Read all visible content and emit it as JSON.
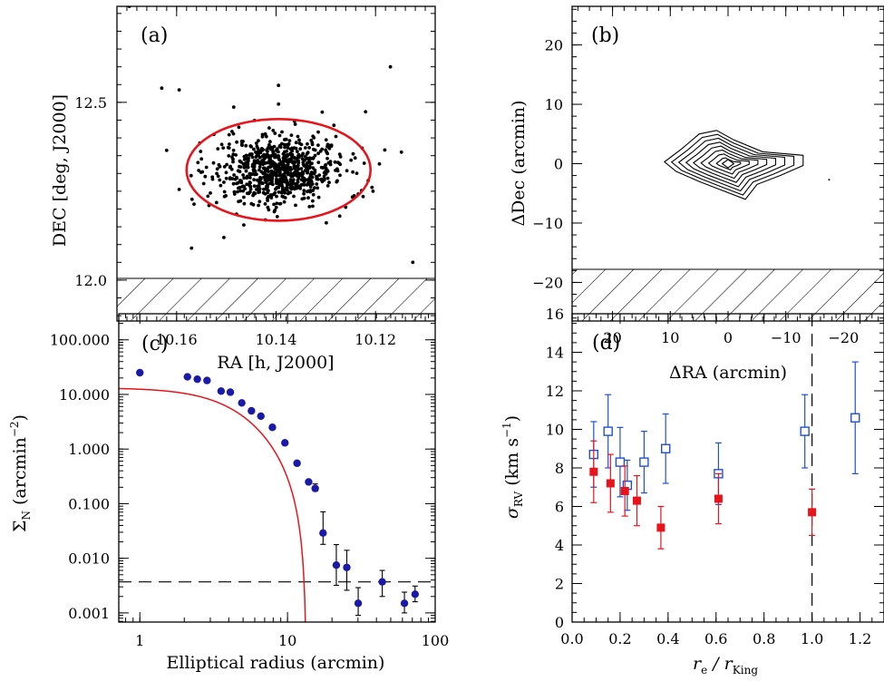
{
  "panels": {
    "a": {
      "label": "(a)",
      "xlabel": "RA [h, J2000]",
      "ylabel": "DEC [deg, J2000]",
      "xticks": [
        "10.16",
        "10.14",
        "10.12"
      ],
      "yticks": [
        "12.0",
        "12.5"
      ]
    },
    "b": {
      "label": "(b)",
      "xlabel": "ΔRA (arcmin)",
      "ylabel": "ΔDec (arcmin)",
      "xticks": [
        "20",
        "10",
        "0",
        "−10",
        "−20"
      ],
      "yticks": [
        "−20",
        "−10",
        "0",
        "10",
        "20"
      ]
    },
    "c": {
      "label": "(c)",
      "xlabel": "Elliptical radius (arcmin)",
      "ylabel_main": "Σ",
      "ylabel_sub": "N",
      "ylabel_rest": " (arcmin",
      "ylabel_sup": "−2",
      "ylabel_end": ")",
      "xticks": [
        "1",
        "10",
        "100"
      ],
      "yticks": [
        "100.000",
        "10.000",
        "1.000",
        "0.100",
        "0.010",
        "0.001"
      ]
    },
    "d": {
      "label": "(d)",
      "xlabel_main": "r",
      "xlabel_sub1": "e",
      "xlabel_mid": " / r",
      "xlabel_sub2": "King",
      "ylabel_main": "σ",
      "ylabel_sub": "RV",
      "ylabel_rest": " (km s",
      "ylabel_sup": "−1",
      "ylabel_end": ")",
      "xticks": [
        "0.0",
        "0.2",
        "0.4",
        "0.6",
        "0.8",
        "1.0",
        "1.2"
      ],
      "yticks": [
        "0",
        "2",
        "4",
        "6",
        "8",
        "10",
        "12",
        "14",
        "16"
      ]
    }
  },
  "colors": {
    "ellipse": "#e8141c",
    "profile_points": "#1a1aa6",
    "king_fit": "#e8141c",
    "open_squares": "#1f4fd6",
    "filled_squares": "#e8141c"
  },
  "chart_data": [
    {
      "type": "scatter",
      "panel": "a",
      "xlabel": "RA [h, J2000]",
      "ylabel": "DEC [deg, J2000]",
      "xlim": [
        10.172,
        10.108
      ],
      "ylim": [
        11.885,
        12.77
      ],
      "xticks": [
        10.16,
        10.14,
        10.12
      ],
      "yticks": [
        12.0,
        12.5
      ],
      "hatched_region_below_dec": 12.005,
      "cluster_center": [
        10.1395,
        12.31
      ],
      "ellipse": {
        "center": [
          10.1395,
          12.31
        ],
        "semi_axis_ra": 0.0185,
        "semi_axis_dec": 0.143
      },
      "outliers": [
        [
          10.1695,
          12.77
        ],
        [
          10.163,
          12.54
        ],
        [
          10.1595,
          12.535
        ],
        [
          10.162,
          12.365
        ],
        [
          10.1595,
          12.255
        ],
        [
          10.157,
          12.09
        ],
        [
          10.1505,
          12.12
        ],
        [
          10.1465,
          12.155
        ],
        [
          10.1395,
          12.495
        ],
        [
          10.117,
          12.6
        ],
        [
          10.1148,
          12.36
        ],
        [
          10.1125,
          12.05
        ],
        [
          10.1225,
          12.235
        ],
        [
          10.1205,
          12.25
        ],
        [
          10.1475,
          12.43
        ],
        [
          10.1245,
          12.355
        ],
        [
          10.1535,
          12.21
        ],
        [
          10.126,
          12.205
        ],
        [
          10.1525,
          12.41
        ],
        [
          10.1272,
          12.18
        ]
      ]
    },
    {
      "type": "contour",
      "panel": "b",
      "xlabel": "ΔRA (arcmin)",
      "ylabel": "ΔDec (arcmin)",
      "xlim": [
        27,
        -27
      ],
      "ylim": [
        -26.5,
        26.5
      ],
      "xticks": [
        20,
        10,
        0,
        -10,
        -20
      ],
      "yticks": [
        -20,
        -10,
        0,
        10,
        20
      ],
      "hatched_region_below_ddec": -17.8,
      "peak": [
        0,
        0
      ],
      "contour_levels": 8
    },
    {
      "type": "scatter",
      "panel": "c",
      "xlabel": "Elliptical radius (arcmin)",
      "ylabel": "Σ_N (arcmin^-2)",
      "xscale": "log",
      "yscale": "log",
      "xlim": [
        0.72,
        100
      ],
      "ylim": [
        0.00068,
        300
      ],
      "x": [
        1.0,
        2.1,
        2.45,
        2.85,
        3.55,
        4.1,
        4.9,
        5.7,
        6.6,
        7.9,
        9.6,
        11.6,
        13.9,
        15.4,
        17.4,
        21.4,
        25.2,
        30.1,
        43.8,
        61.9,
        73.1
      ],
      "y": [
        25.0,
        21.0,
        19.0,
        18.0,
        11.5,
        11.0,
        7.0,
        5.0,
        4.0,
        2.5,
        1.3,
        0.55,
        0.25,
        0.19,
        0.029,
        0.0075,
        0.0068,
        0.0015,
        0.0037,
        0.0015,
        0.0022
      ],
      "yerr_low": [
        0,
        0,
        0,
        0,
        0,
        0,
        0,
        0,
        0,
        0,
        0,
        0,
        0,
        0.02,
        0.011,
        0.0043,
        0.0042,
        0.0006,
        0.0017,
        0.0005,
        0.0006
      ],
      "yerr_high": [
        0,
        0,
        0,
        0,
        0,
        0,
        0,
        0,
        0,
        0,
        0,
        0,
        0,
        0.04,
        0.042,
        0.0103,
        0.0072,
        0.0014,
        0.0023,
        0.0009,
        0.0009
      ],
      "background_level": 0.0037,
      "king_fit": {
        "core_radius": 4.95,
        "tidal_radius": 13.4,
        "k": 31
      }
    },
    {
      "type": "scatter",
      "panel": "d",
      "xlabel": "r_e / r_King",
      "ylabel": "σ_RV (km s^-1)",
      "xlim": [
        0.0,
        1.3
      ],
      "ylim": [
        0,
        16
      ],
      "vline": 1.0,
      "series": [
        {
          "marker": "open-square",
          "x": [
            0.09,
            0.15,
            0.2,
            0.23,
            0.3,
            0.39,
            0.61,
            0.97,
            1.18
          ],
          "y": [
            8.7,
            9.9,
            8.3,
            7.1,
            8.3,
            9.0,
            7.7,
            9.9,
            10.6
          ],
          "err": [
            1.7,
            1.9,
            1.8,
            1.3,
            1.6,
            1.8,
            1.6,
            1.9,
            2.9
          ]
        },
        {
          "marker": "filled-square",
          "x": [
            0.09,
            0.16,
            0.22,
            0.27,
            0.37,
            0.61,
            1.0
          ],
          "y": [
            7.8,
            7.2,
            6.8,
            6.3,
            4.9,
            6.4,
            5.7
          ],
          "err": [
            1.6,
            1.5,
            1.3,
            1.3,
            1.1,
            1.3,
            1.2
          ]
        }
      ]
    }
  ]
}
